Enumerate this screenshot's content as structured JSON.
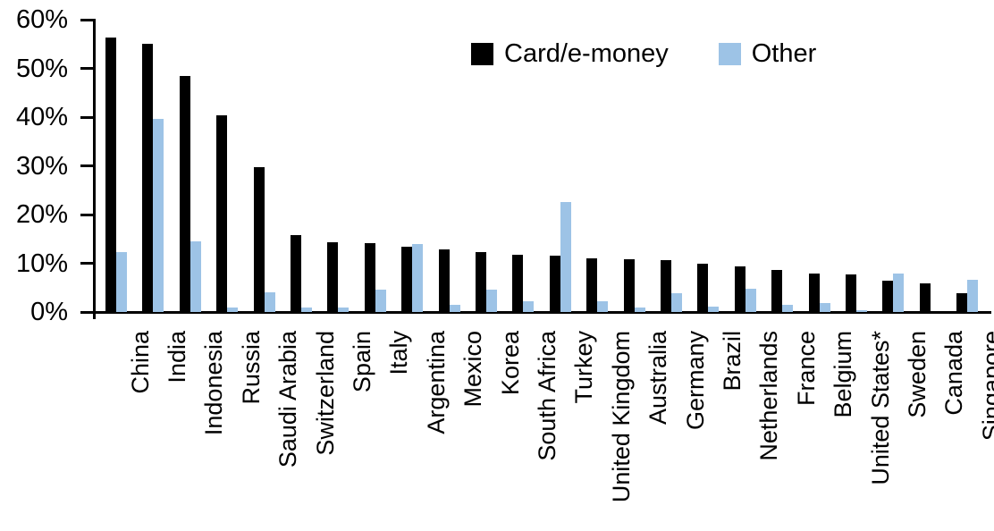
{
  "chart_data": {
    "type": "bar",
    "title": "",
    "xlabel": "",
    "ylabel": "",
    "ylim": [
      0,
      60
    ],
    "yticks": [
      "0%",
      "10%",
      "20%",
      "30%",
      "40%",
      "50%",
      "60%"
    ],
    "ytick_values": [
      0,
      10,
      20,
      30,
      40,
      50,
      60
    ],
    "grid": false,
    "legend_position": "top-center",
    "categories": [
      "China",
      "India",
      "Indonesia",
      "Russia",
      "Saudi Arabia",
      "Switzerland",
      "Spain",
      "Italy",
      "Argentina",
      "Mexico",
      "Korea",
      "South Africa",
      "Turkey",
      "United Kingdom",
      "Australia",
      "Germany",
      "Brazil",
      "Netherlands",
      "France",
      "Belgium",
      "United States*",
      "Sweden",
      "Canada",
      "Singapore"
    ],
    "series": [
      {
        "name": "Card/e-money",
        "color": "#000000",
        "values": [
          56.4,
          55.1,
          48.4,
          40.4,
          29.8,
          15.7,
          14.3,
          14.2,
          13.4,
          12.9,
          12.3,
          11.8,
          11.6,
          11.1,
          10.8,
          10.6,
          9.9,
          9.3,
          8.6,
          7.9,
          7.7,
          6.4,
          5.8,
          3.8
        ]
      },
      {
        "name": "Other",
        "color": "#9DC3E6",
        "values": [
          12.3,
          39.7,
          14.5,
          1.0,
          4.0,
          0.9,
          1.0,
          4.6,
          13.9,
          1.4,
          4.6,
          2.3,
          22.5,
          2.3,
          1.0,
          3.8,
          1.1,
          4.7,
          1.4,
          1.9,
          0.3,
          7.9,
          0.0,
          6.7
        ]
      }
    ]
  }
}
